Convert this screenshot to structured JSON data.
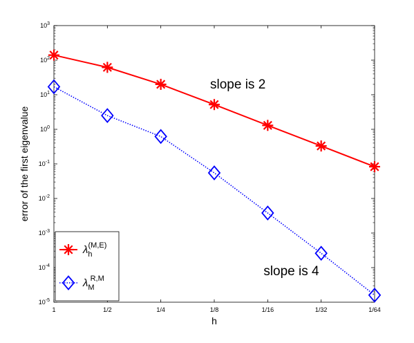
{
  "chart_data": {
    "type": "line",
    "title": "",
    "xlabel": "h",
    "ylabel": "error of the first eigenvalue",
    "yscale": "log",
    "ylim": [
      1e-05,
      1000
    ],
    "x_tick_labels": [
      "1",
      "1/2",
      "1/4",
      "1/8",
      "1/16",
      "1/32",
      "1/64"
    ],
    "y_tick_labels": [
      {
        "base": "10",
        "exp": "3"
      },
      {
        "base": "10",
        "exp": "2"
      },
      {
        "base": "10",
        "exp": "1"
      },
      {
        "base": "10",
        "exp": "0"
      },
      {
        "base": "10",
        "exp": "-1"
      },
      {
        "base": "10",
        "exp": "-2"
      },
      {
        "base": "10",
        "exp": "-3"
      },
      {
        "base": "10",
        "exp": "-4"
      },
      {
        "base": "10",
        "exp": "-5"
      }
    ],
    "x": [
      1,
      0.5,
      0.25,
      0.125,
      0.0625,
      0.03125,
      0.015625
    ],
    "series": [
      {
        "label_symbol": "λ",
        "label_sub": "h",
        "label_sup": "(M,E)",
        "color": "#ff0000",
        "marker": "asterisk",
        "line_style": "solid",
        "values": [
          140,
          62,
          20,
          5.2,
          1.3,
          0.33,
          0.083
        ]
      },
      {
        "label_symbol": "λ",
        "label_sub": "M",
        "label_sup": "R,M",
        "color": "#0000ff",
        "marker": "diamond",
        "line_style": "dotted",
        "values": [
          17,
          2.5,
          0.62,
          0.055,
          0.0038,
          0.00026,
          1.6e-05
        ]
      }
    ],
    "annotations": [
      {
        "text": "slope is 2",
        "x": 0.125,
        "y": 20
      },
      {
        "text": "slope is 4",
        "x": 0.0625,
        "y": 8e-05
      }
    ],
    "legend_position": "lower-left",
    "grid": false
  }
}
